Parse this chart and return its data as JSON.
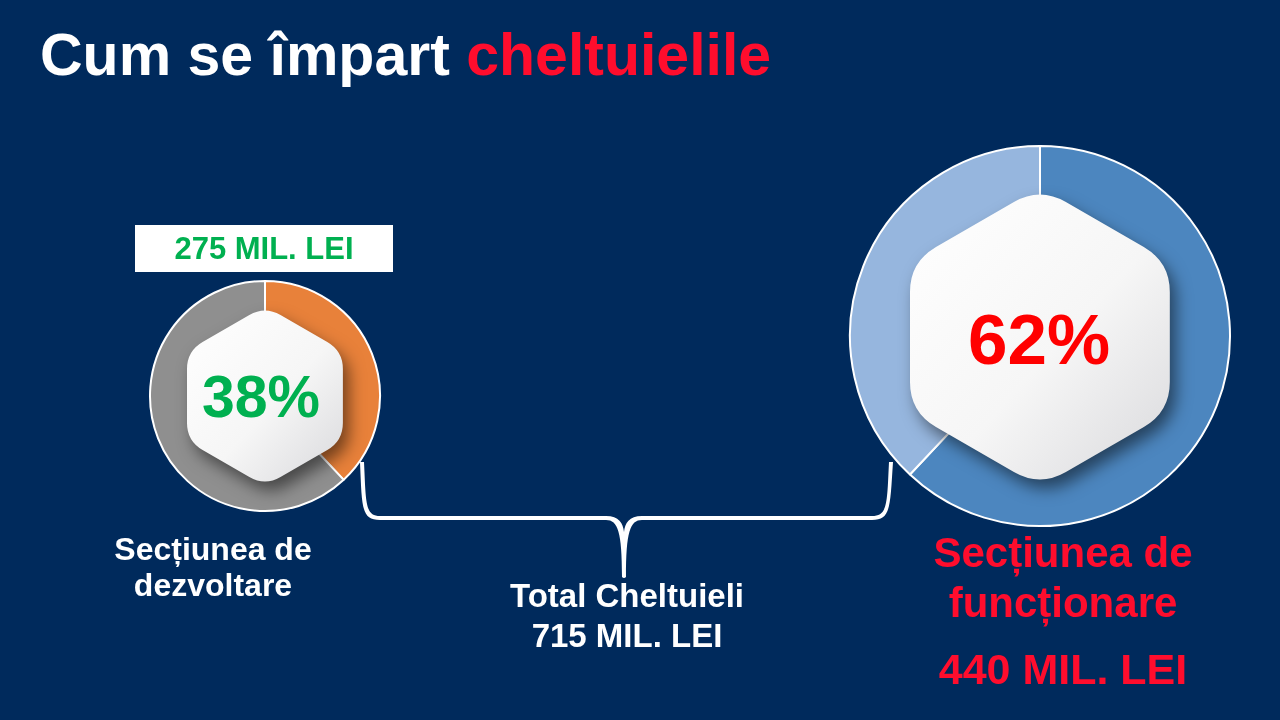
{
  "chart_data": [
    {
      "type": "other",
      "title": "Cum se împart cheltuielile",
      "annotations": [
        "Total Cheltuieli 715 MIL. LEI"
      ]
    },
    {
      "type": "donut",
      "title": "Secțiunea de dezvoltare",
      "categories": [
        null,
        null
      ],
      "values": [
        38,
        62
      ],
      "colors": [
        "#e8813a",
        "#8f8f8f"
      ],
      "annotations": [
        "275 MIL. LEI",
        "38%"
      ]
    },
    {
      "type": "donut",
      "title": "Secțiunea de funcționare",
      "categories": [
        null,
        null
      ],
      "values": [
        62,
        38
      ],
      "colors": [
        "#4c86bf",
        "#96b6de"
      ],
      "annotations": [
        "62%",
        "440 MIL. LEI"
      ]
    }
  ]
}
